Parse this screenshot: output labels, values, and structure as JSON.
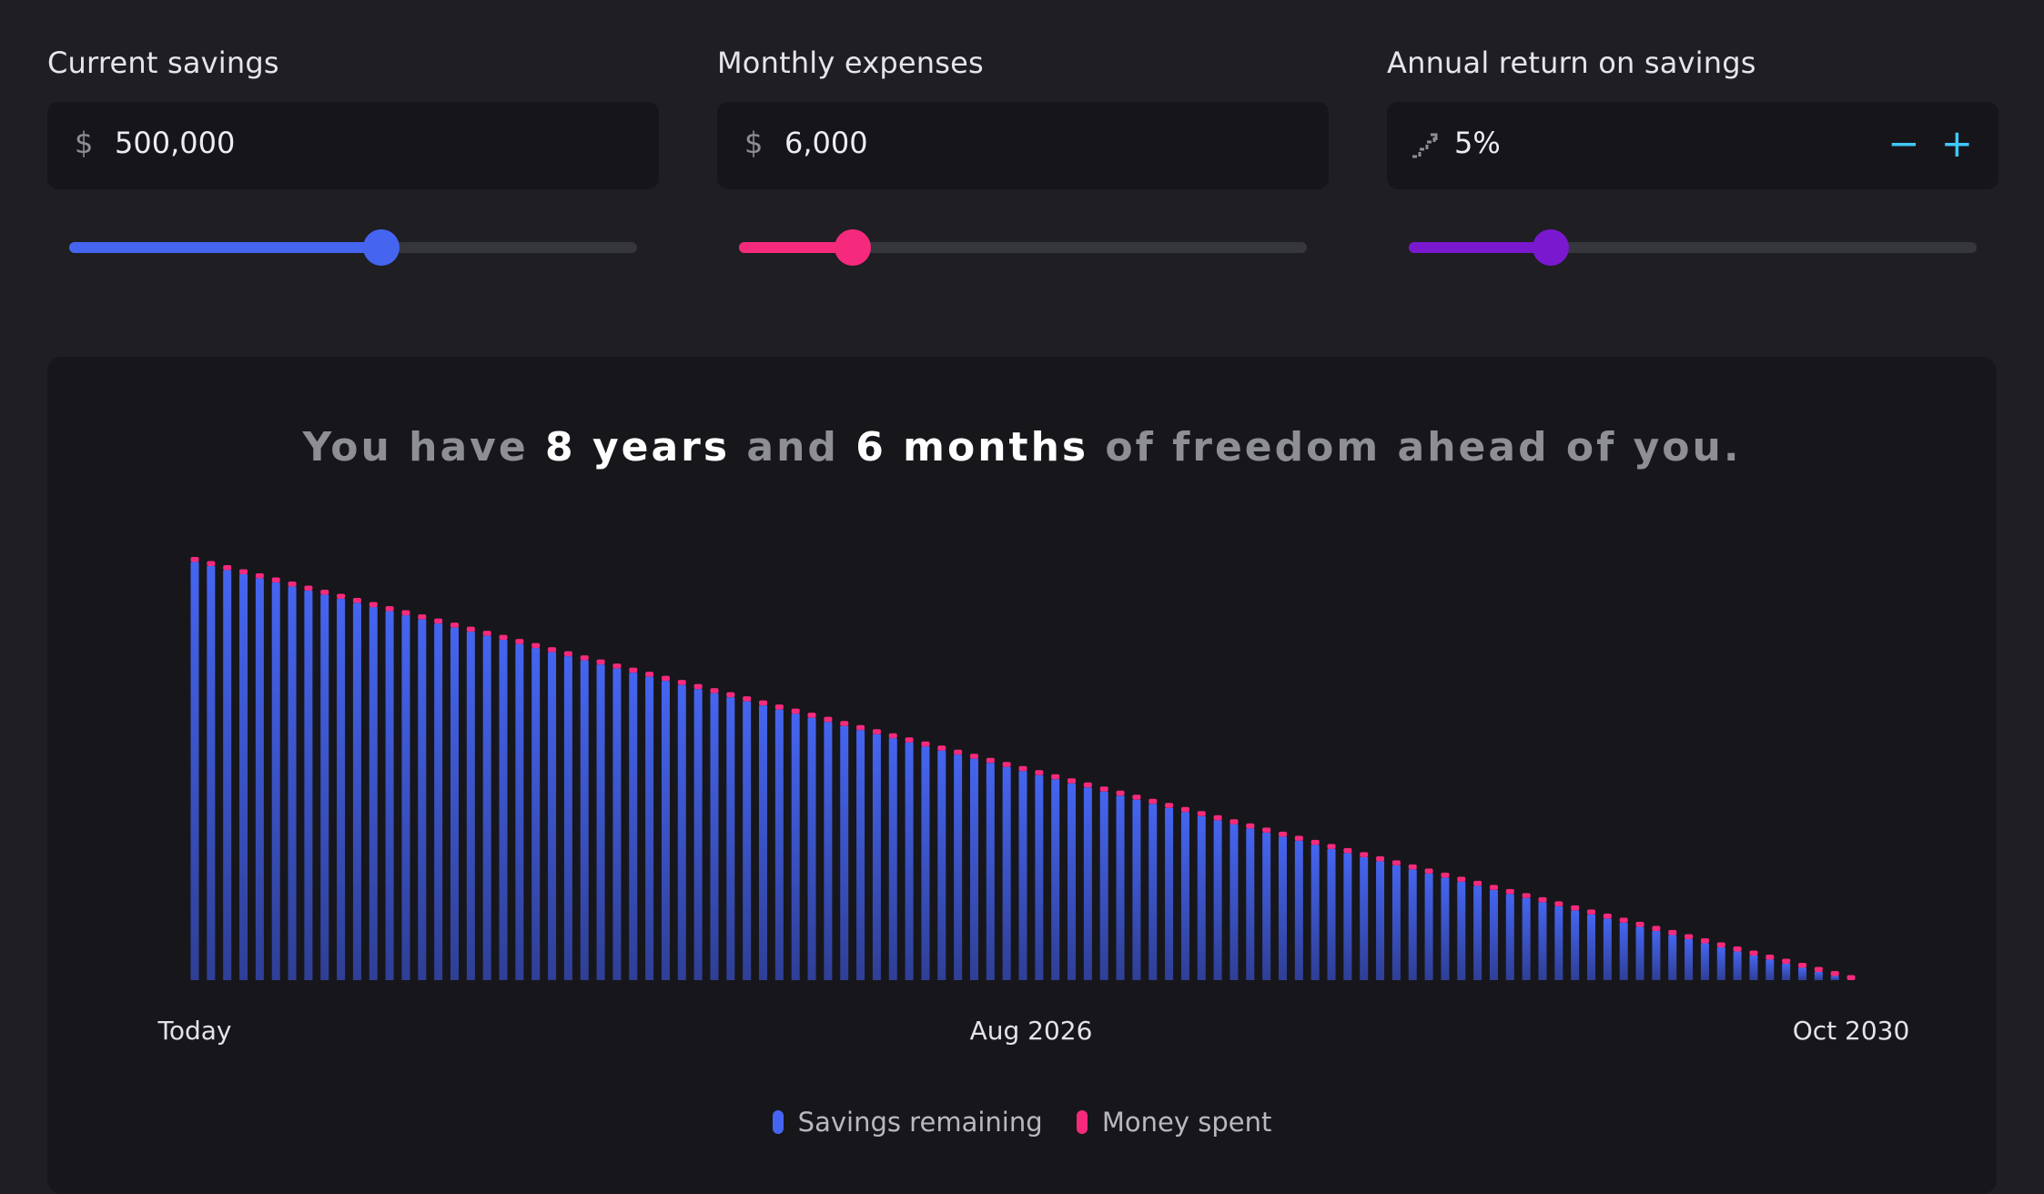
{
  "controls": {
    "savings": {
      "label": "Current savings",
      "prefix": "$",
      "value": "500,000",
      "slider_fraction": 0.55,
      "color": "#4565f0"
    },
    "expenses": {
      "label": "Monthly expenses",
      "prefix": "$",
      "value": "6,000",
      "slider_fraction": 0.2,
      "color": "#f52a7d"
    },
    "return": {
      "label": "Annual return on savings",
      "value": "5%",
      "slider_fraction": 0.25,
      "color": "#7a18cf",
      "minus": "−",
      "plus": "+",
      "accent": "#3ec9ff"
    }
  },
  "headline": {
    "p1": "You have ",
    "years": "8 years",
    "p2": " and ",
    "months": "6 months",
    "p3": " of freedom ahead of you."
  },
  "chart_data": {
    "type": "bar",
    "stacked": true,
    "bar_count": 103,
    "x_ticks": [
      "Today",
      "Aug 2026",
      "Oct 2030"
    ],
    "series": [
      {
        "name": "Savings remaining",
        "color": "#4565f0",
        "start": 500000,
        "end": 0
      },
      {
        "name": "Money spent",
        "color": "#f52a7d",
        "per_bar": 6000
      }
    ],
    "legend": "bottom-center",
    "grid": false
  }
}
